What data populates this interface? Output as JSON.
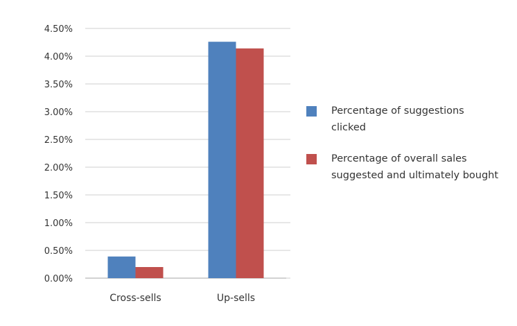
{
  "chart_data": {
    "type": "bar",
    "categories": [
      "Cross-sells",
      "Up-sells"
    ],
    "series": [
      {
        "name": "Percentage of suggestions clicked",
        "color": "#4F81BD",
        "values": [
          0.39,
          4.26
        ]
      },
      {
        "name": "Percentage of overall sales suggested and ultimately bought",
        "color": "#C0504D",
        "values": [
          0.2,
          4.14
        ]
      }
    ],
    "ylim": [
      0,
      4.5
    ],
    "yticks": [
      "0.00%",
      "0.50%",
      "1.00%",
      "1.50%",
      "2.00%",
      "2.50%",
      "3.00%",
      "3.50%",
      "4.00%",
      "4.50%"
    ],
    "grid": true,
    "legend_position": "right"
  },
  "legend": {
    "items": [
      {
        "label": "Percentage of suggestions clicked",
        "color": "#4F81BD"
      },
      {
        "label": "Percentage of overall sales suggested and ultimately bought",
        "color": "#C0504D"
      }
    ]
  }
}
